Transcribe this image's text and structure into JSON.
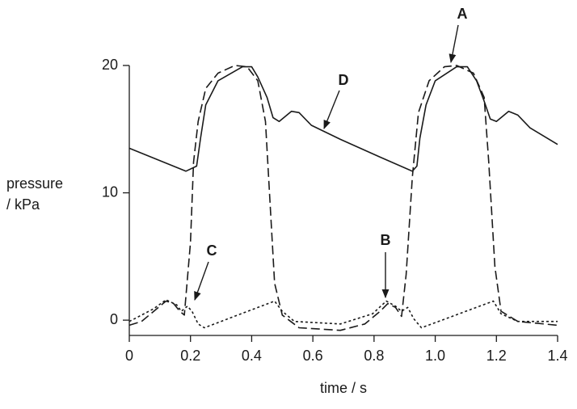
{
  "chart_data": {
    "type": "line",
    "ylabel": [
      "pressure",
      "/ kPa"
    ],
    "xlabel": "time / s",
    "xlim": [
      0,
      1.4
    ],
    "ylim": [
      -1.2,
      20
    ],
    "xticks": [
      0,
      0.2,
      0.4,
      0.6,
      0.8,
      {
        "value": 1,
        "label": "1.0"
      },
      1.2,
      1.4
    ],
    "yticks": [
      0,
      10,
      20
    ],
    "series": [
      {
        "color": "#1a1a1a",
        "dash": "solid",
        "x": [
          0,
          0.185,
          0.22,
          0.233,
          0.25,
          0.29,
          0.37,
          0.4,
          0.42,
          0.45,
          0.47,
          0.49,
          0.53,
          0.555,
          0.595,
          0.69,
          0.82,
          0.925,
          0.94,
          0.95,
          0.97,
          1.0,
          1.07,
          1.105,
          1.135,
          1.16,
          1.18,
          1.2,
          1.24,
          1.27,
          1.31,
          1.4
        ],
        "values": [
          13.5,
          11.7,
          12.1,
          14.3,
          16.9,
          18.8,
          19.9,
          19.9,
          19.1,
          17.5,
          15.9,
          15.6,
          16.4,
          16.3,
          15.3,
          14.2,
          12.8,
          11.7,
          12.1,
          14.3,
          16.9,
          18.8,
          19.9,
          19.9,
          18.8,
          17.2,
          15.8,
          15.6,
          16.4,
          16.1,
          15.1,
          13.8
        ]
      },
      {
        "color": "#1a1a1a",
        "dash": "dashed",
        "x": [
          0,
          0.04,
          0.08,
          0.12,
          0.145,
          0.165,
          0.18,
          0.2,
          0.21,
          0.225,
          0.25,
          0.29,
          0.345,
          0.385,
          0.42,
          0.445,
          0.46,
          0.475,
          0.5,
          0.555,
          0.69,
          0.77,
          0.82,
          0.845,
          0.87,
          0.89,
          0.905,
          0.925,
          0.945,
          0.98,
          1.03,
          1.07,
          1.125,
          1.16,
          1.175,
          1.195,
          1.215,
          1.27,
          1.4
        ],
        "values": [
          -0.4,
          -0.1,
          0.7,
          1.5,
          1.3,
          0.7,
          0.4,
          6.1,
          12.4,
          15.6,
          18.2,
          19.4,
          20,
          19.9,
          18.8,
          15.6,
          9.3,
          2.9,
          0.4,
          -0.6,
          -0.8,
          -0.3,
          0.7,
          1.3,
          1.0,
          0.3,
          3.6,
          11.2,
          16.3,
          18.8,
          19.9,
          20,
          19.4,
          17.5,
          12.4,
          4.2,
          0.7,
          -0.1,
          -0.4
        ]
      },
      {
        "color": "#1a1a1a",
        "dash": "dotted",
        "x": [
          0,
          0.08,
          0.12,
          0.155,
          0.17,
          0.19,
          0.205,
          0.225,
          0.245,
          0.475,
          0.5,
          0.54,
          0.69,
          0.795,
          0.84,
          0.87,
          0.89,
          0.91,
          0.93,
          0.955,
          1.19,
          1.215,
          1.27,
          1.4
        ],
        "values": [
          -0.1,
          0.9,
          1.6,
          1.2,
          0.7,
          1.1,
          0.7,
          -0.3,
          -0.6,
          1.5,
          0.7,
          -0.1,
          -0.3,
          0.5,
          1.5,
          1.1,
          0.7,
          1.0,
          0.1,
          -0.6,
          1.5,
          0.5,
          -0.1,
          -0.1
        ]
      }
    ],
    "annotations": [
      "A",
      "B",
      "C",
      "D"
    ]
  }
}
